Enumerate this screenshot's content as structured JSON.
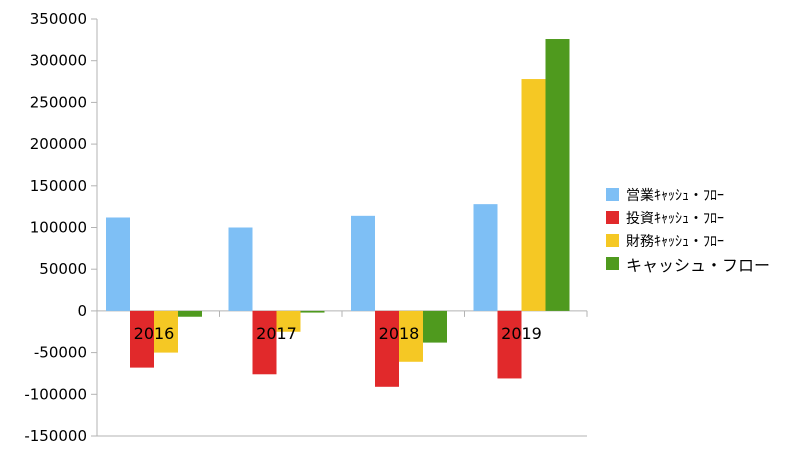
{
  "chart_data": {
    "type": "bar",
    "categories": [
      "2016",
      "2017",
      "2018",
      "2019"
    ],
    "series": [
      {
        "name": "営業ｷｬｯｼｭ・ﾌﾛｰ",
        "color": "#7ebff5",
        "values": [
          112000,
          100000,
          114000,
          128000
        ]
      },
      {
        "name": "投資ｷｬｯｼｭ・ﾌﾛｰ",
        "color": "#e1292b",
        "values": [
          -68000,
          -76000,
          -91000,
          -81000
        ]
      },
      {
        "name": "財務ｷｬｯｼｭ・ﾌﾛｰ",
        "color": "#f5c824",
        "values": [
          -50000,
          -25000,
          -61000,
          278000
        ]
      },
      {
        "name": "キャッシュ・フロー",
        "color": "#4f9a1e",
        "values": [
          -7000,
          -2000,
          -38000,
          326000
        ]
      }
    ],
    "ylim": [
      -150000,
      350000
    ],
    "yticks": [
      350000,
      300000,
      250000,
      200000,
      150000,
      100000,
      50000,
      0,
      -50000,
      -100000,
      -150000
    ],
    "grid": false,
    "legend_position": "right",
    "title": "",
    "xlabel": "",
    "ylabel": ""
  }
}
